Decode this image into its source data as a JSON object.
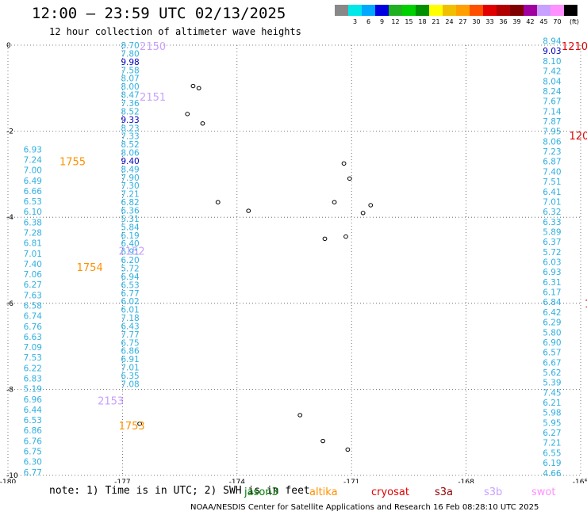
{
  "header": {
    "title": "12:00 — 23:59 UTC 02/13/2025",
    "subtitle": "12 hour collection of altimeter wave heights"
  },
  "legend": {
    "unit": "(ft)",
    "bins": [
      {
        "label": "",
        "color": "#888888"
      },
      {
        "label": "3",
        "color": "#00e8e8"
      },
      {
        "label": "6",
        "color": "#00a8ff"
      },
      {
        "label": "9",
        "color": "#0000e0"
      },
      {
        "label": "12",
        "color": "#20b020"
      },
      {
        "label": "15",
        "color": "#00d000"
      },
      {
        "label": "18",
        "color": "#009000"
      },
      {
        "label": "21",
        "color": "#ffff00"
      },
      {
        "label": "24",
        "color": "#f0c000"
      },
      {
        "label": "27",
        "color": "#ffa000"
      },
      {
        "label": "30",
        "color": "#ff5000"
      },
      {
        "label": "33",
        "color": "#e00000"
      },
      {
        "label": "36",
        "color": "#b00000"
      },
      {
        "label": "39",
        "color": "#800000"
      },
      {
        "label": "42",
        "color": "#a000a0"
      },
      {
        "label": "45",
        "color": "#c8a0ff"
      },
      {
        "label": "70",
        "color": "#ff90ff"
      },
      {
        "label": "",
        "color": "#000000"
      }
    ]
  },
  "map": {
    "lon_range": [
      -180,
      -165
    ],
    "lat_range": [
      -10,
      0
    ],
    "x_ticks": [
      "-180",
      "-177",
      "-174",
      "-171",
      "-168",
      "-165"
    ],
    "y_ticks": [
      "0",
      "-2",
      "-4",
      "-6",
      "-8",
      "-10"
    ]
  },
  "tracks": {
    "track_a": {
      "color": "#30b0e0",
      "lon": -176.8,
      "lat_top": 0.0,
      "lat_step": 0.192,
      "values": [
        "8.70",
        "7.80",
        "9.98",
        "7.58",
        "8.07",
        "8.00",
        "8.47",
        "7.36",
        "8.52",
        "9.33",
        "8.23",
        "7.33",
        "8.52",
        "8.06",
        "9.40",
        "8.49",
        "7.90",
        "7.30",
        "7.21",
        "6.82",
        "6.36",
        "5.31",
        "5.84",
        "6.19",
        "6.40",
        "6.91",
        "6.20",
        "5.72",
        "6.94",
        "6.53",
        "6.77",
        "6.02",
        "6.01",
        "7.18",
        "6.43",
        "7.77",
        "6.75",
        "6.86",
        "6.91",
        "7.01",
        "6.35",
        "7.08"
      ]
    },
    "track_b": {
      "color": "#30b0e0",
      "lon": -179.35,
      "lat_top": -2.42,
      "lat_step": 0.242,
      "values": [
        "6.93",
        "7.24",
        "7.00",
        "6.49",
        "6.66",
        "6.53",
        "6.10",
        "6.38",
        "7.28",
        "6.81",
        "7.01",
        "7.40",
        "7.06",
        "6.27",
        "7.63",
        "6.58",
        "6.74",
        "6.76",
        "6.63",
        "7.09",
        "7.53",
        "6.22",
        "6.83",
        "5.19",
        "6.96",
        "6.44",
        "6.53",
        "6.86",
        "6.76",
        "6.75",
        "6.30",
        "6.77"
      ]
    },
    "track_c": {
      "color": "#30b0e0",
      "lon": -165.75,
      "lat_top": 0.1,
      "lat_step": 0.2335,
      "values": [
        "8.94",
        "9.03",
        "8.10",
        "7.42",
        "8.04",
        "8.24",
        "7.67",
        "7.14",
        "7.87",
        "7.95",
        "8.06",
        "7.23",
        "6.87",
        "7.40",
        "7.51",
        "6.41",
        "7.01",
        "6.32",
        "6.33",
        "5.89",
        "6.37",
        "5.72",
        "6.03",
        "6.93",
        "6.31",
        "6.17",
        "6.84",
        "6.42",
        "6.29",
        "5.80",
        "6.90",
        "6.57",
        "6.67",
        "5.62",
        "5.39",
        "7.45",
        "6.21",
        "5.98",
        "5.95",
        "6.27",
        "7.21",
        "6.55",
        "6.19",
        "4.66"
      ]
    }
  },
  "pass_labels": [
    {
      "text": "2150",
      "lon": -176.55,
      "lat": -0.02,
      "color": "#c8a0ff"
    },
    {
      "text": "2151",
      "lon": -176.55,
      "lat": -1.2,
      "color": "#c8a0ff"
    },
    {
      "text": "2152",
      "lon": -177.1,
      "lat": -4.78,
      "color": "#c8a0ff"
    },
    {
      "text": "1755",
      "lon": -178.65,
      "lat": -2.7,
      "color": "#ff9000"
    },
    {
      "text": "1754",
      "lon": -178.2,
      "lat": -5.16,
      "color": "#ff9000"
    },
    {
      "text": "2153",
      "lon": -177.65,
      "lat": -8.26,
      "color": "#c8a0ff"
    },
    {
      "text": "1753",
      "lon": -177.1,
      "lat": -8.84,
      "color": "#ff9000"
    },
    {
      "text": "1210",
      "lon": -165.5,
      "lat": -0.02,
      "color": "#e00000"
    },
    {
      "text": "1209",
      "lon": -165.3,
      "lat": -2.1,
      "color": "#e00000"
    },
    {
      "text": "1208",
      "lon": -164.9,
      "lat": -6.0,
      "color": "#e00000"
    },
    {
      "text": "120",
      "lon": -164.6,
      "lat": -9.35,
      "color": "#e00000"
    }
  ],
  "islands": [
    {
      "name": "island-icon",
      "lon": -175.15,
      "lat": -0.95
    },
    {
      "name": "island-icon",
      "lon": -175.0,
      "lat": -1.0
    },
    {
      "name": "island-icon",
      "lon": -175.3,
      "lat": -1.6
    },
    {
      "name": "island-icon",
      "lon": -174.9,
      "lat": -1.82
    },
    {
      "name": "island-icon",
      "lon": -171.2,
      "lat": -2.75
    },
    {
      "name": "island-icon",
      "lon": -171.05,
      "lat": -3.1
    },
    {
      "name": "island-icon",
      "lon": -171.45,
      "lat": -3.65
    },
    {
      "name": "island-icon",
      "lon": -170.5,
      "lat": -3.72
    },
    {
      "name": "island-icon",
      "lon": -174.5,
      "lat": -3.65
    },
    {
      "name": "island-icon",
      "lon": -173.7,
      "lat": -3.85
    },
    {
      "name": "island-icon",
      "lon": -170.7,
      "lat": -3.9
    },
    {
      "name": "island-icon",
      "lon": -171.7,
      "lat": -4.5
    },
    {
      "name": "island-icon",
      "lon": -171.15,
      "lat": -4.45
    },
    {
      "name": "island-icon",
      "lon": -172.35,
      "lat": -8.6
    },
    {
      "name": "island-icon",
      "lon": -176.55,
      "lat": -8.8
    },
    {
      "name": "island-icon",
      "lon": -171.75,
      "lat": -9.2
    },
    {
      "name": "island-icon",
      "lon": -171.1,
      "lat": -9.4
    }
  ],
  "footer": {
    "note": "note:  1) Time is in UTC; 2) SWH is in feet",
    "missions": [
      {
        "text": "jason3",
        "color": "#008000"
      },
      {
        "text": "altika",
        "color": "#ff9000"
      },
      {
        "text": "cryosat",
        "color": "#e00000"
      },
      {
        "text": "s3a",
        "color": "#900000"
      },
      {
        "text": "s3b",
        "color": "#c8a0ff"
      },
      {
        "text": "swot",
        "color": "#ff90ff"
      }
    ],
    "credit": "NOAA/NESDIS Center for Satellite Applications and Research   16 Feb 08:28:10 UTC 2025"
  }
}
